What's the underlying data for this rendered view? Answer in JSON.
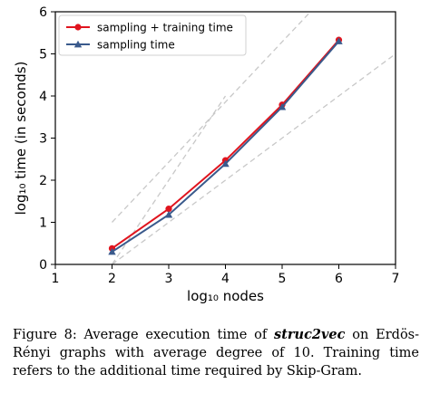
{
  "chart_data": {
    "type": "line",
    "x": [
      2,
      3,
      4,
      5,
      6
    ],
    "series": [
      {
        "name": "sampling + training time",
        "values": [
          0.38,
          1.32,
          2.47,
          3.79,
          5.33
        ],
        "color": "#e0141e",
        "marker": "circle"
      },
      {
        "name": "sampling time",
        "values": [
          0.3,
          1.18,
          2.39,
          3.74,
          5.3
        ],
        "color": "#3a5a8c",
        "marker": "triangle"
      }
    ],
    "reference_lines": {
      "color": "#c8c8c8",
      "style": "dashed",
      "lines": [
        {
          "x": [
            2,
            7
          ],
          "y": [
            0,
            5
          ]
        },
        {
          "x": [
            2,
            5.5
          ],
          "y": [
            1,
            6
          ]
        },
        {
          "x": [
            2,
            4
          ],
          "y": [
            0,
            4
          ]
        }
      ]
    },
    "xlim": [
      1,
      7
    ],
    "ylim": [
      0,
      6
    ],
    "xticks": [
      "1",
      "2",
      "3",
      "4",
      "5",
      "6",
      "7"
    ],
    "yticks": [
      "0",
      "1",
      "2",
      "3",
      "4",
      "5",
      "6"
    ],
    "xlabel": "log₁₀ nodes",
    "ylabel": "log₁₀ time (in seconds)",
    "grid": false,
    "legend_position": "top-left"
  },
  "caption": {
    "label": "Figure 8:",
    "pre": "Average execution time of",
    "emph": "struc2vec",
    "post": "on Erdös-Rényi graphs with average degree of 10. Training time refers to the additional time required by Skip-Gram."
  }
}
